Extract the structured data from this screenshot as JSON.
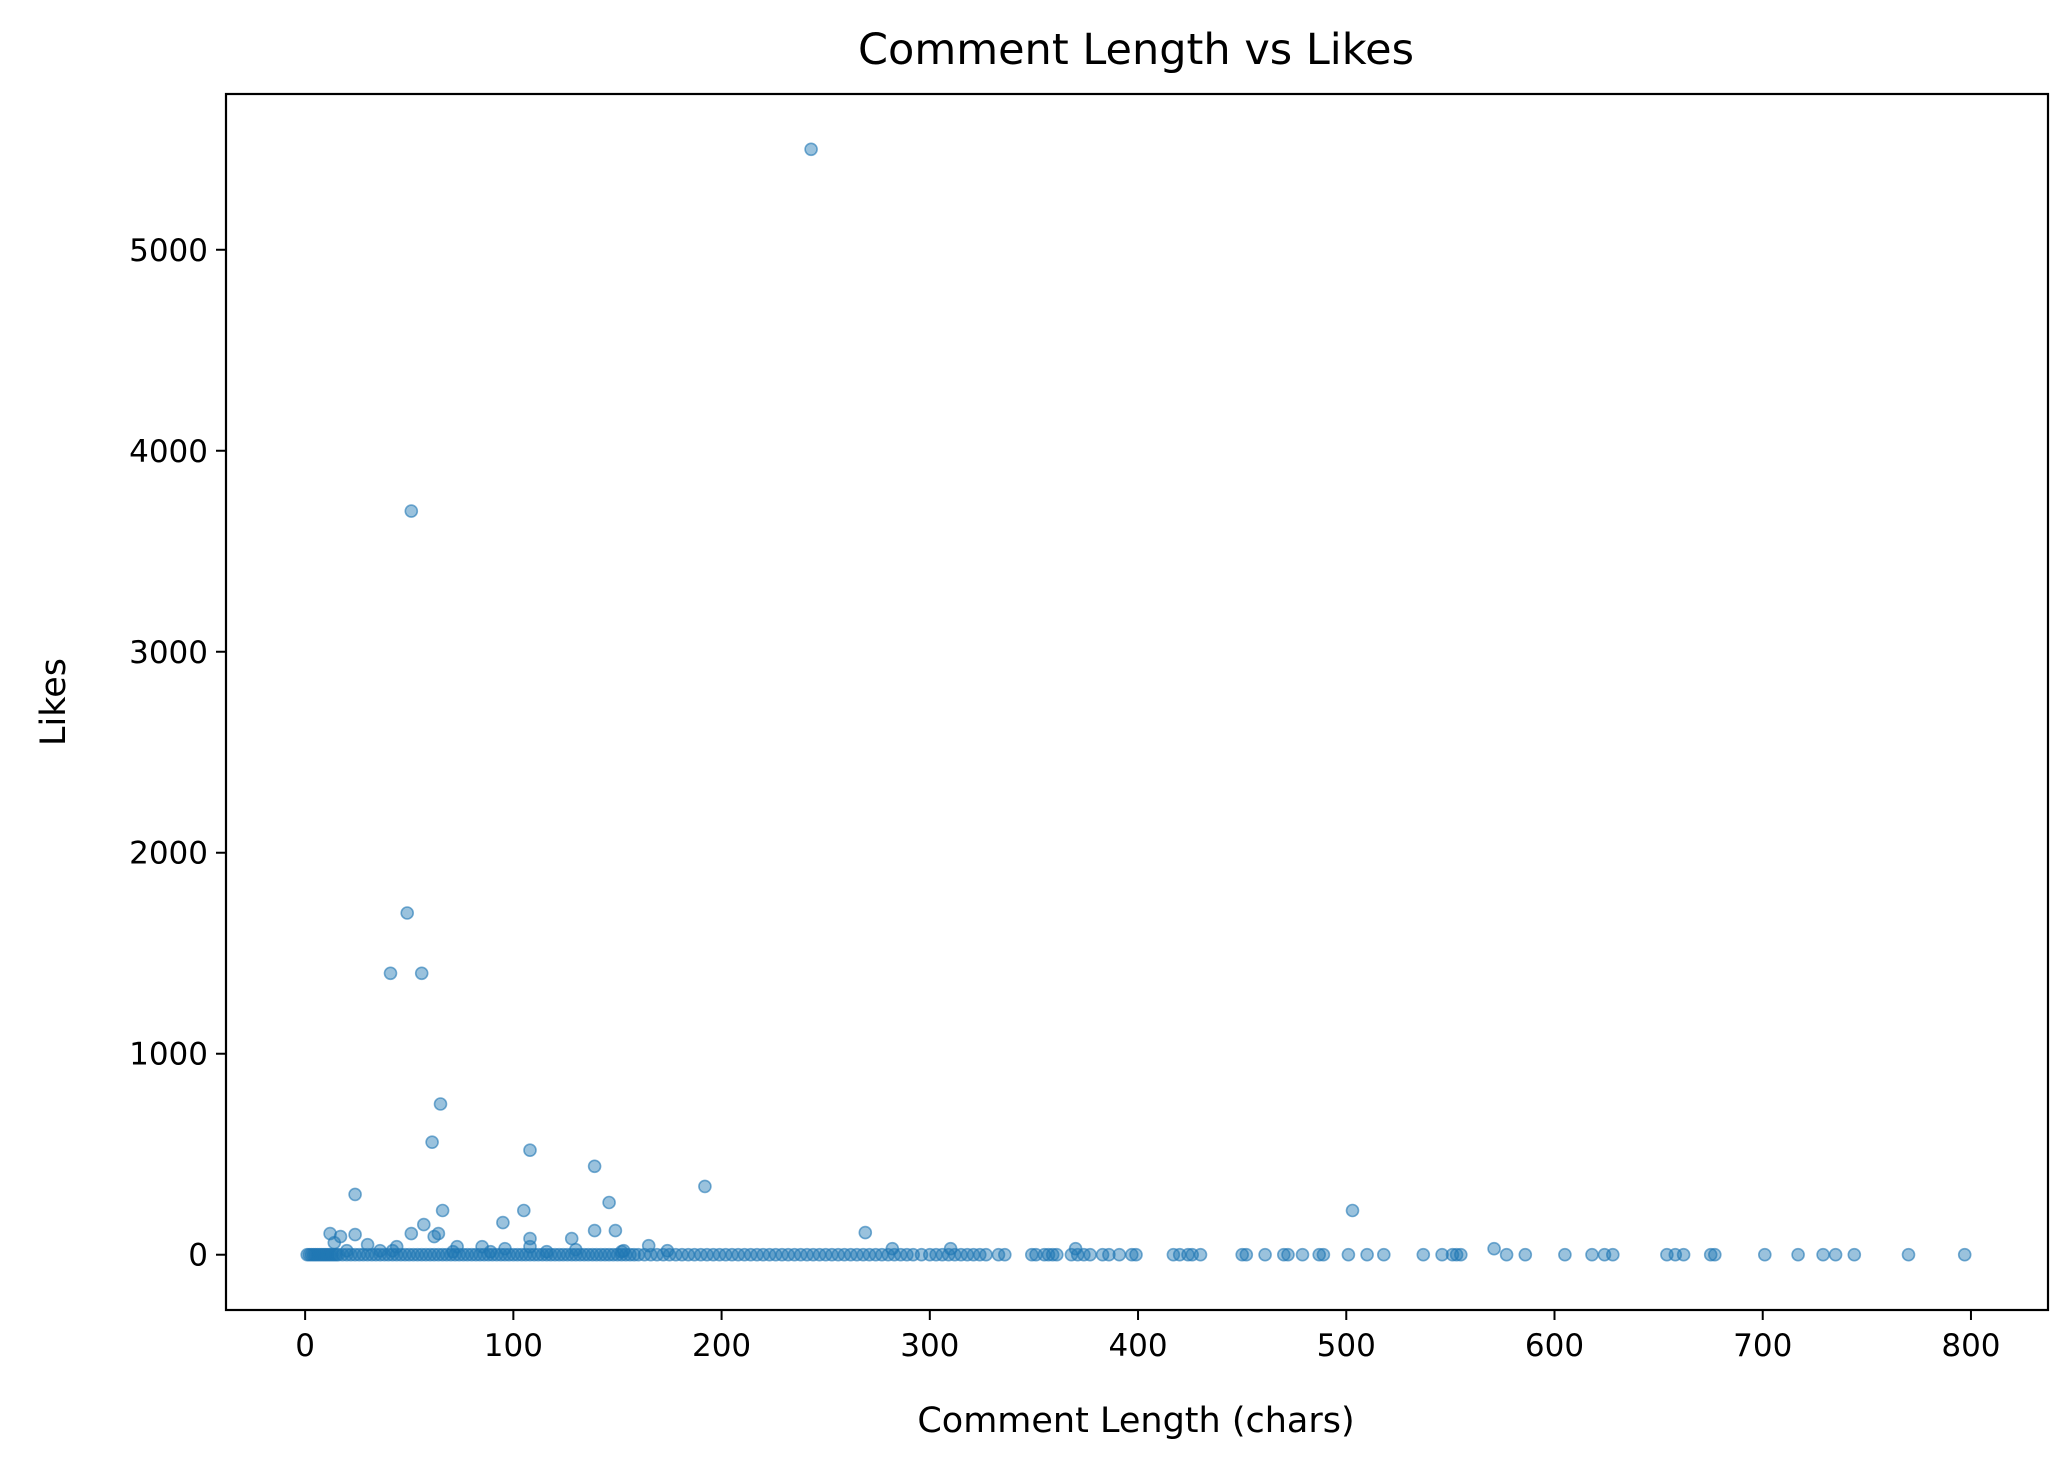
{
  "chart_data": {
    "type": "scatter",
    "title": "Comment Length vs Likes",
    "xlabel": "Comment Length (chars)",
    "ylabel": "Likes",
    "xlim": [
      -38,
      837
    ],
    "ylim": [
      -275,
      5775
    ],
    "xticks": [
      0,
      100,
      200,
      300,
      400,
      500,
      600,
      700,
      800
    ],
    "yticks": [
      0,
      1000,
      2000,
      3000,
      4000,
      5000
    ],
    "grid": false,
    "legend": "none",
    "marker_color": "#1f77b4",
    "series": [
      {
        "points": [
          [
            243,
            5500
          ],
          [
            51,
            3700
          ],
          [
            49,
            1700
          ],
          [
            41,
            1400
          ],
          [
            56,
            1400
          ],
          [
            65,
            750
          ],
          [
            61,
            560
          ],
          [
            108,
            520
          ],
          [
            139,
            440
          ],
          [
            192,
            340
          ],
          [
            24,
            300
          ],
          [
            146,
            260
          ],
          [
            503,
            220
          ],
          [
            66,
            220
          ],
          [
            105,
            220
          ],
          [
            95,
            160
          ],
          [
            57,
            150
          ],
          [
            139,
            120
          ],
          [
            149,
            120
          ],
          [
            269,
            110
          ],
          [
            12,
            105
          ],
          [
            51,
            105
          ],
          [
            64,
            105
          ],
          [
            62,
            90
          ],
          [
            17,
            90
          ],
          [
            24,
            100
          ],
          [
            128,
            80
          ],
          [
            108,
            80
          ],
          [
            14,
            60
          ],
          [
            30,
            50
          ],
          [
            165,
            45
          ],
          [
            73,
            40
          ],
          [
            44,
            40
          ],
          [
            85,
            40
          ],
          [
            108,
            40
          ],
          [
            96,
            30
          ],
          [
            310,
            30
          ],
          [
            571,
            30
          ],
          [
            370,
            30
          ],
          [
            282,
            30
          ],
          [
            130,
            25
          ],
          [
            153,
            20
          ],
          [
            42,
            20
          ],
          [
            20,
            20
          ],
          [
            36,
            20
          ],
          [
            174,
            20
          ],
          [
            152,
            15
          ],
          [
            71,
            15
          ],
          [
            89,
            15
          ],
          [
            116,
            15
          ],
          [
            1,
            0
          ],
          [
            2,
            0
          ],
          [
            3,
            0
          ],
          [
            4,
            0
          ],
          [
            5,
            0
          ],
          [
            6,
            0
          ],
          [
            7,
            0
          ],
          [
            8,
            0
          ],
          [
            9,
            0
          ],
          [
            10,
            0
          ],
          [
            11,
            0
          ],
          [
            12,
            0
          ],
          [
            13,
            0
          ],
          [
            14,
            0
          ],
          [
            15,
            0
          ],
          [
            16,
            0
          ],
          [
            18,
            0
          ],
          [
            20,
            0
          ],
          [
            22,
            0
          ],
          [
            24,
            0
          ],
          [
            26,
            0
          ],
          [
            28,
            0
          ],
          [
            30,
            0
          ],
          [
            32,
            0
          ],
          [
            34,
            0
          ],
          [
            36,
            0
          ],
          [
            38,
            0
          ],
          [
            40,
            0
          ],
          [
            42,
            0
          ],
          [
            44,
            0
          ],
          [
            46,
            0
          ],
          [
            48,
            0
          ],
          [
            50,
            0
          ],
          [
            52,
            0
          ],
          [
            54,
            0
          ],
          [
            56,
            0
          ],
          [
            58,
            0
          ],
          [
            60,
            0
          ],
          [
            62,
            0
          ],
          [
            64,
            0
          ],
          [
            66,
            0
          ],
          [
            68,
            0
          ],
          [
            70,
            0
          ],
          [
            72,
            0
          ],
          [
            74,
            0
          ],
          [
            76,
            0
          ],
          [
            78,
            0
          ],
          [
            80,
            0
          ],
          [
            82,
            0
          ],
          [
            84,
            0
          ],
          [
            86,
            0
          ],
          [
            88,
            0
          ],
          [
            90,
            0
          ],
          [
            92,
            0
          ],
          [
            94,
            0
          ],
          [
            96,
            0
          ],
          [
            98,
            0
          ],
          [
            100,
            0
          ],
          [
            102,
            0
          ],
          [
            104,
            0
          ],
          [
            106,
            0
          ],
          [
            108,
            0
          ],
          [
            110,
            0
          ],
          [
            112,
            0
          ],
          [
            114,
            0
          ],
          [
            116,
            0
          ],
          [
            118,
            0
          ],
          [
            120,
            0
          ],
          [
            122,
            0
          ],
          [
            124,
            0
          ],
          [
            126,
            0
          ],
          [
            128,
            0
          ],
          [
            130,
            0
          ],
          [
            132,
            0
          ],
          [
            134,
            0
          ],
          [
            136,
            0
          ],
          [
            138,
            0
          ],
          [
            140,
            0
          ],
          [
            142,
            0
          ],
          [
            144,
            0
          ],
          [
            146,
            0
          ],
          [
            148,
            0
          ],
          [
            150,
            0
          ],
          [
            152,
            0
          ],
          [
            154,
            0
          ],
          [
            156,
            0
          ],
          [
            158,
            0
          ],
          [
            160,
            0
          ],
          [
            163,
            0
          ],
          [
            166,
            0
          ],
          [
            169,
            0
          ],
          [
            172,
            0
          ],
          [
            175,
            0
          ],
          [
            178,
            0
          ],
          [
            181,
            0
          ],
          [
            184,
            0
          ],
          [
            187,
            0
          ],
          [
            190,
            0
          ],
          [
            193,
            0
          ],
          [
            196,
            0
          ],
          [
            199,
            0
          ],
          [
            202,
            0
          ],
          [
            205,
            0
          ],
          [
            208,
            0
          ],
          [
            211,
            0
          ],
          [
            214,
            0
          ],
          [
            217,
            0
          ],
          [
            220,
            0
          ],
          [
            223,
            0
          ],
          [
            226,
            0
          ],
          [
            229,
            0
          ],
          [
            232,
            0
          ],
          [
            235,
            0
          ],
          [
            238,
            0
          ],
          [
            241,
            0
          ],
          [
            244,
            0
          ],
          [
            247,
            0
          ],
          [
            250,
            0
          ],
          [
            253,
            0
          ],
          [
            256,
            0
          ],
          [
            259,
            0
          ],
          [
            262,
            0
          ],
          [
            265,
            0
          ],
          [
            268,
            0
          ],
          [
            271,
            0
          ],
          [
            274,
            0
          ],
          [
            277,
            0
          ],
          [
            280,
            0
          ],
          [
            283,
            0
          ],
          [
            286,
            0
          ],
          [
            289,
            0
          ],
          [
            292,
            0
          ],
          [
            296,
            0
          ],
          [
            300,
            0
          ],
          [
            303,
            0
          ],
          [
            306,
            0
          ],
          [
            309,
            0
          ],
          [
            312,
            0
          ],
          [
            315,
            0
          ],
          [
            318,
            0
          ],
          [
            321,
            0
          ],
          [
            324,
            0
          ],
          [
            327,
            0
          ],
          [
            333,
            0
          ],
          [
            336,
            0
          ],
          [
            349,
            0
          ],
          [
            351,
            0
          ],
          [
            355,
            0
          ],
          [
            357,
            0
          ],
          [
            359,
            0
          ],
          [
            361,
            0
          ],
          [
            368,
            0
          ],
          [
            371,
            0
          ],
          [
            374,
            0
          ],
          [
            377,
            0
          ],
          [
            383,
            0
          ],
          [
            386,
            0
          ],
          [
            391,
            0
          ],
          [
            397,
            0
          ],
          [
            399,
            0
          ],
          [
            417,
            0
          ],
          [
            420,
            0
          ],
          [
            424,
            0
          ],
          [
            426,
            0
          ],
          [
            430,
            0
          ],
          [
            450,
            0
          ],
          [
            452,
            0
          ],
          [
            461,
            0
          ],
          [
            470,
            0
          ],
          [
            472,
            0
          ],
          [
            479,
            0
          ],
          [
            487,
            0
          ],
          [
            489,
            0
          ],
          [
            501,
            0
          ],
          [
            510,
            0
          ],
          [
            518,
            0
          ],
          [
            537,
            0
          ],
          [
            546,
            0
          ],
          [
            551,
            0
          ],
          [
            553,
            0
          ],
          [
            555,
            0
          ],
          [
            577,
            0
          ],
          [
            586,
            0
          ],
          [
            605,
            0
          ],
          [
            618,
            0
          ],
          [
            624,
            0
          ],
          [
            628,
            0
          ],
          [
            654,
            0
          ],
          [
            658,
            0
          ],
          [
            662,
            0
          ],
          [
            675,
            0
          ],
          [
            677,
            0
          ],
          [
            701,
            0
          ],
          [
            717,
            0
          ],
          [
            729,
            0
          ],
          [
            735,
            0
          ],
          [
            744,
            0
          ],
          [
            770,
            0
          ],
          [
            797,
            0
          ]
        ]
      }
    ]
  }
}
